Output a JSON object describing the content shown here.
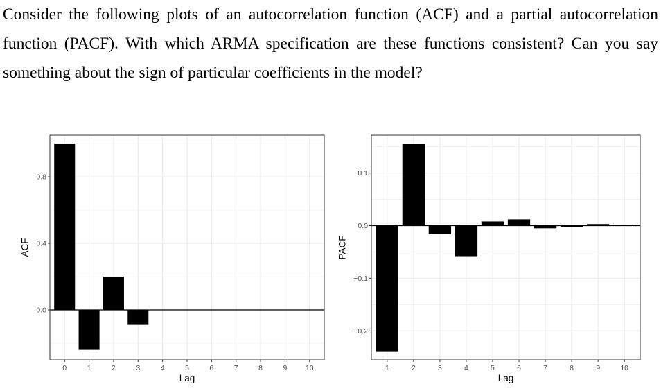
{
  "question": {
    "text": "Consider the following plots of an autocorrelation function (ACF) and a partial au­tocorrelation function (PACF). With which ARMA specification are these functions consistent? Can you say something about the sign of particular coefficients in the model?"
  },
  "chart_data": [
    {
      "type": "bar",
      "xlabel": "Lag",
      "ylabel": "ACF",
      "categories": [
        "0",
        "1",
        "2",
        "3",
        "4",
        "5",
        "6",
        "7",
        "8",
        "9",
        "10"
      ],
      "values": [
        1.0,
        -0.24,
        0.2,
        -0.09,
        0.0,
        0.0,
        0.0,
        0.0,
        0.0,
        0.0,
        0.0
      ],
      "ylim": [
        -0.3,
        1.05
      ],
      "yticks": [
        0.0,
        0.4,
        0.8
      ],
      "ytick_labels": [
        "0.0",
        "0.4",
        "0.8"
      ],
      "grid": true,
      "bar_color": "#000000",
      "panel_border_color": "#333333",
      "grid_color": "#ebebeb",
      "zero_line_color": "#000000"
    },
    {
      "type": "bar",
      "xlabel": "Lag",
      "ylabel": "PACF",
      "categories": [
        "1",
        "2",
        "3",
        "4",
        "5",
        "6",
        "7",
        "8",
        "9",
        "10"
      ],
      "values": [
        -0.24,
        0.155,
        -0.016,
        -0.058,
        0.008,
        0.012,
        -0.005,
        -0.003,
        0.003,
        0.002
      ],
      "ylim": [
        -0.255,
        0.172
      ],
      "yticks": [
        -0.2,
        -0.1,
        0.0,
        0.1
      ],
      "ytick_labels": [
        "−0.2",
        "−0.1",
        "0.0",
        "0.1"
      ],
      "grid": true,
      "bar_color": "#000000",
      "panel_border_color": "#333333",
      "grid_color": "#ebebeb",
      "zero_line_color": "#000000"
    }
  ]
}
